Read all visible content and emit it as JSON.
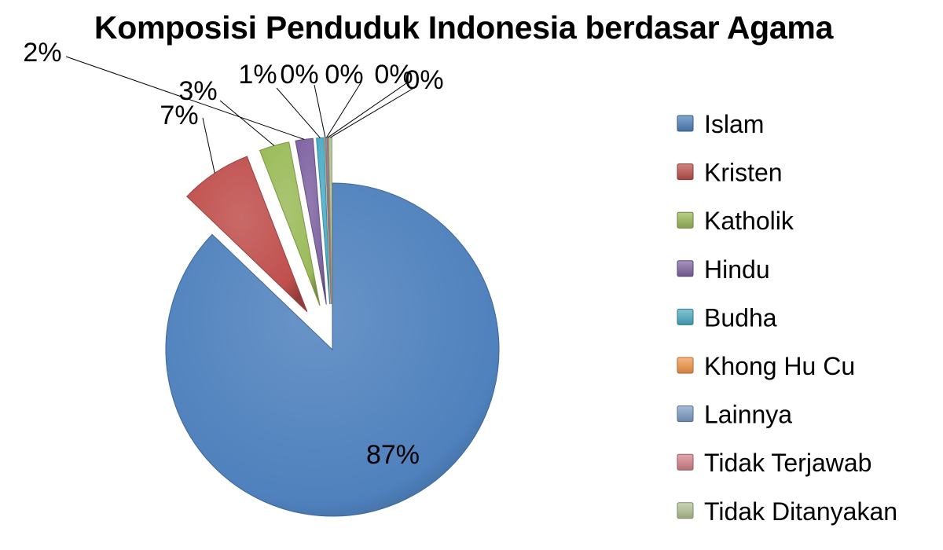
{
  "chart_data": {
    "type": "pie",
    "title": "Komposisi Penduduk Indonesia berdasar Agama",
    "legend_position": "right",
    "slices": [
      {
        "name": "Islam",
        "value": 87.18,
        "label": "87%",
        "color": "#4f81bd"
      },
      {
        "name": "Kristen",
        "value": 6.96,
        "label": "7%",
        "color": "#c0504d"
      },
      {
        "name": "Katholik",
        "value": 2.91,
        "label": "3%",
        "color": "#9bbb59"
      },
      {
        "name": "Hindu",
        "value": 1.69,
        "label": "2%",
        "color": "#8064a2"
      },
      {
        "name": "Budha",
        "value": 0.72,
        "label": "1%",
        "color": "#4bacc6"
      },
      {
        "name": "Khong Hu Cu",
        "value": 0.05,
        "label": "0%",
        "color": "#f79646"
      },
      {
        "name": "Lainnya",
        "value": 0.13,
        "label": "0%",
        "color": "#7f9fc9"
      },
      {
        "name": "Tidak Terjawab",
        "value": 0.06,
        "label": "0%",
        "color": "#d9838a"
      },
      {
        "name": "Tidak Ditanyakan",
        "value": 0.32,
        "label": "0%",
        "color": "#b3c494"
      }
    ]
  }
}
